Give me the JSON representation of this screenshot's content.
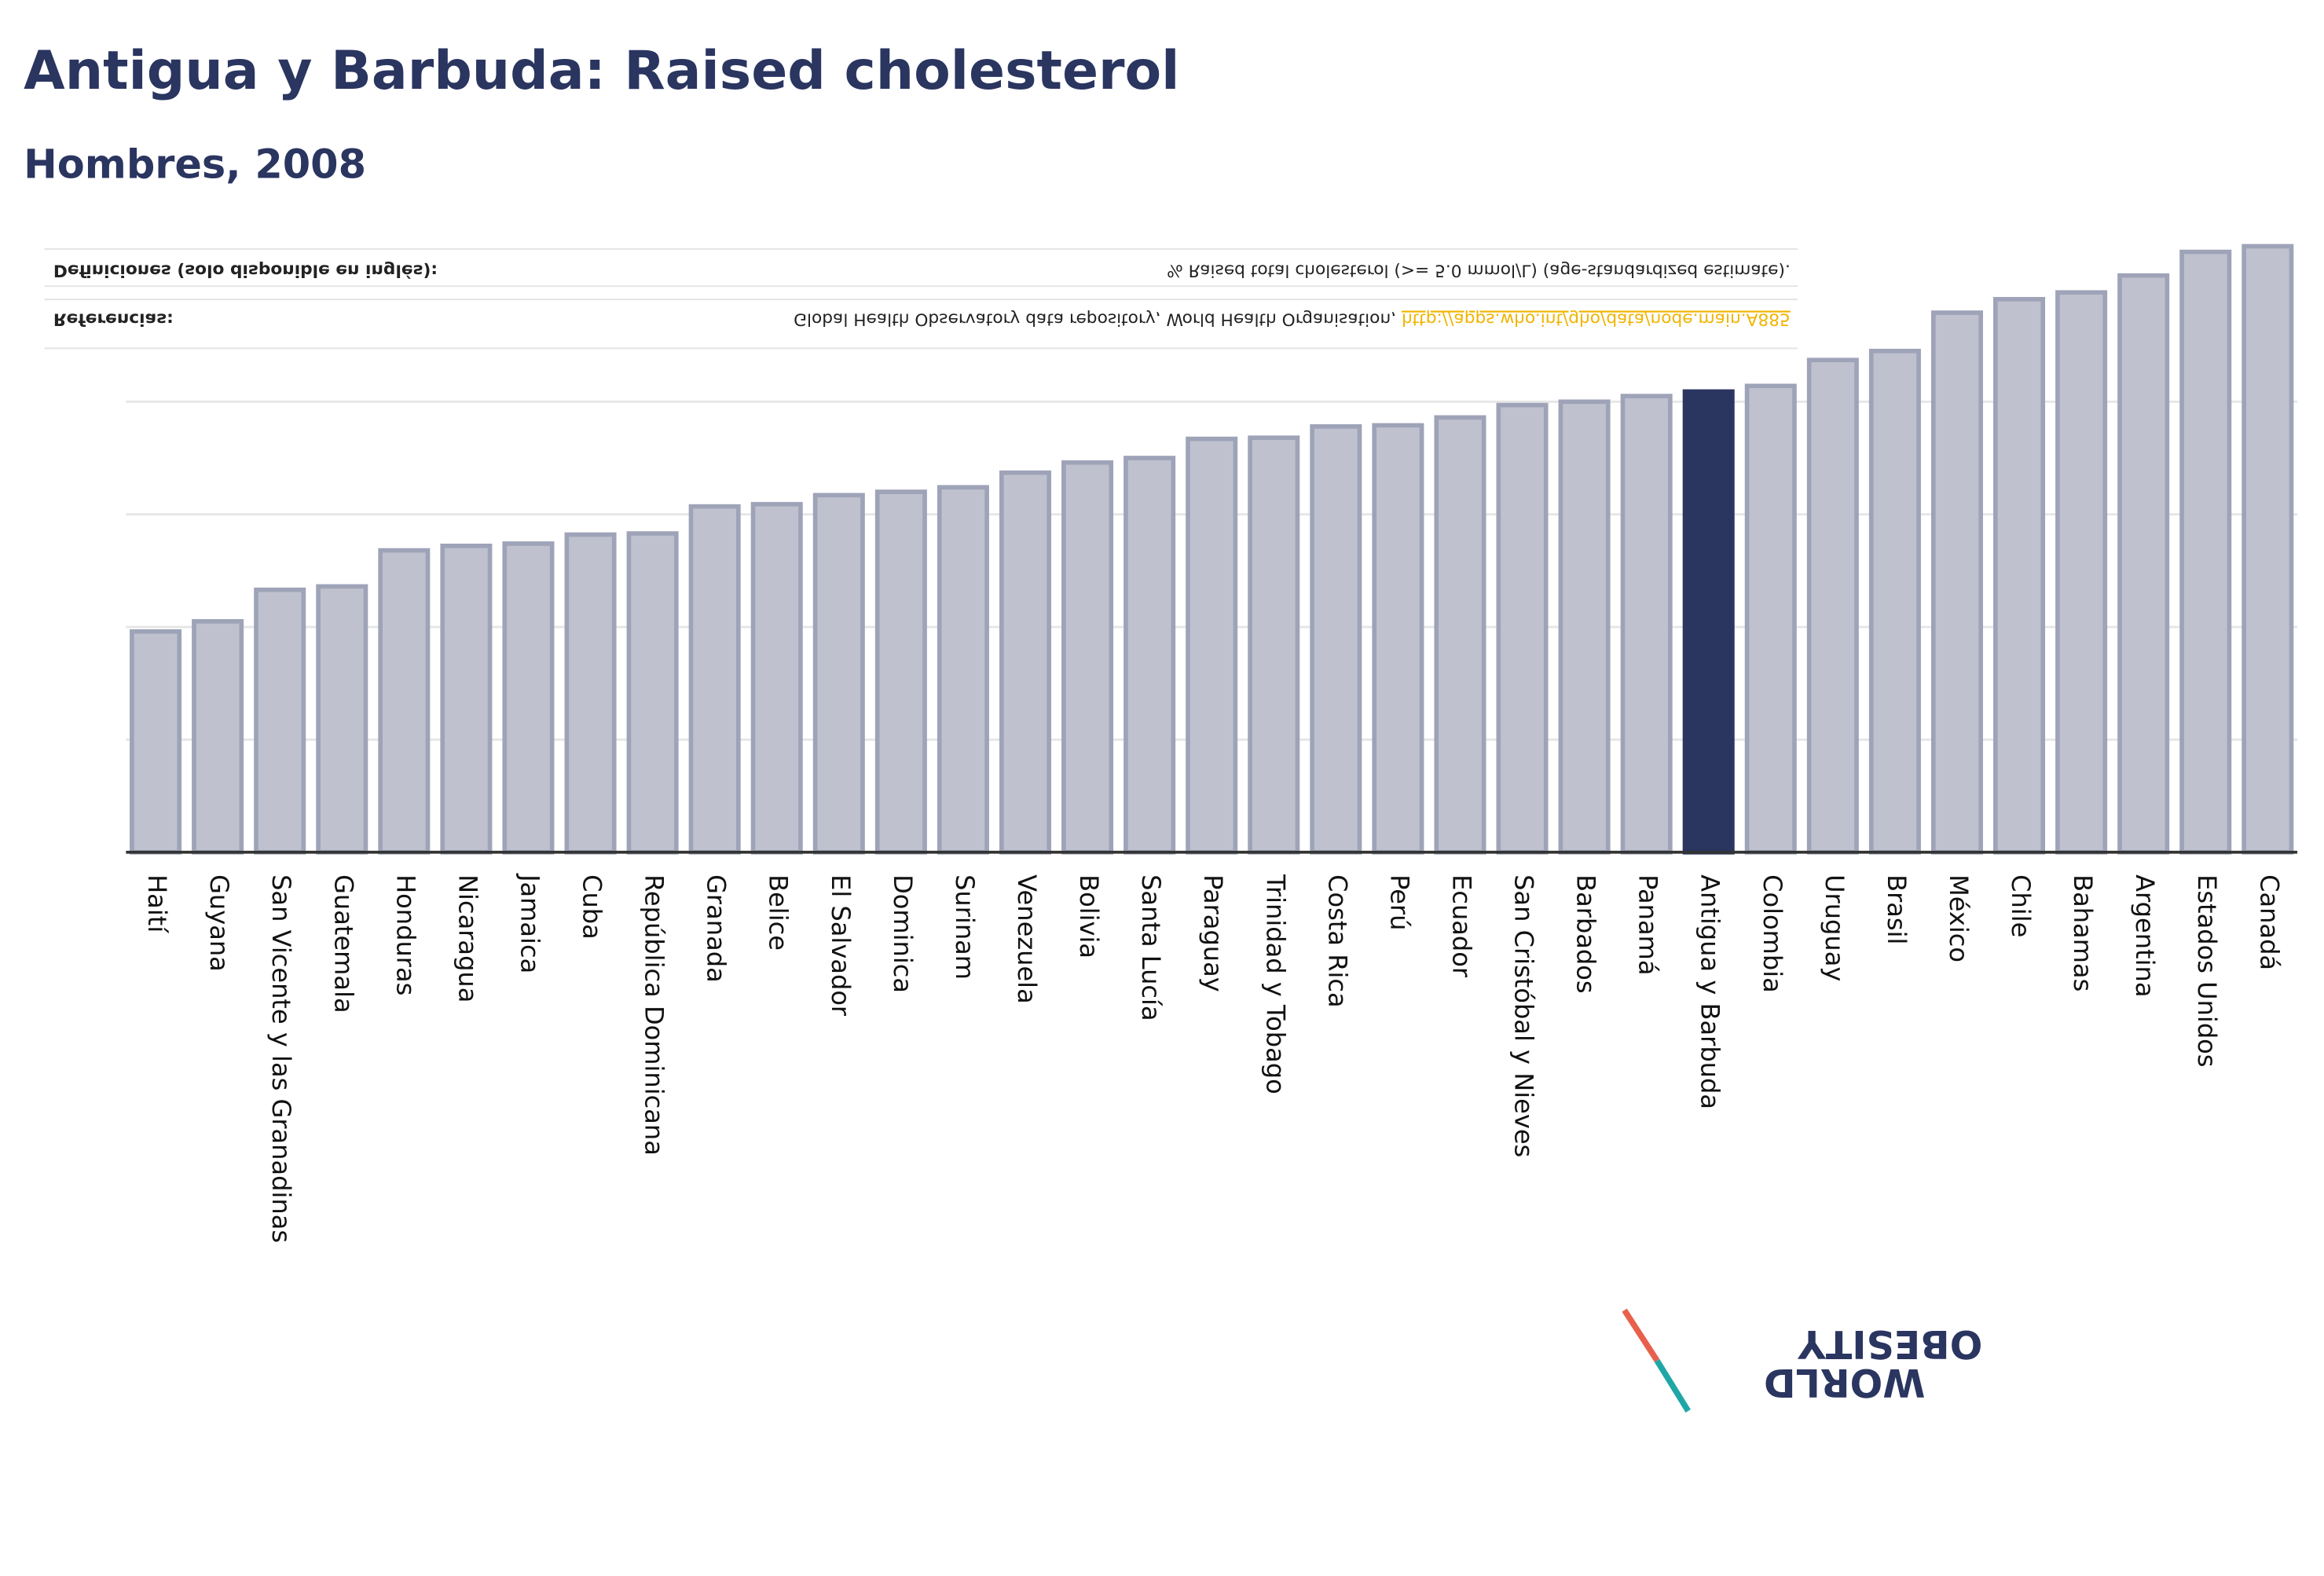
{
  "chart_data": {
    "type": "bar",
    "title": "Antigua y Barbuda: Raised cholesterol",
    "subtitle": "Hombres, 2008",
    "categories": [
      "Haití",
      "Guyana",
      "San Vicente y las Granadinas",
      "Guatemala",
      "Honduras",
      "Nicaragua",
      "Jamaica",
      "Cuba",
      "República Dominicana",
      "Granada",
      "Belice",
      "El Salvador",
      "Dominica",
      "Surinam",
      "Venezuela",
      "Bolivia",
      "Santa Lucía",
      "Paraguay",
      "Trinidad y Tobago",
      "Costa Rica",
      "Perú",
      "Ecuador",
      "San Cristóbal y Nieves",
      "Barbados",
      "Panamá",
      "Antigua y Barbuda",
      "Colombia",
      "Uruguay",
      "Brasil",
      "México",
      "Chile",
      "Bahamas",
      "Argentina",
      "Estados Unidos",
      "Canadá"
    ],
    "values": [
      19.6,
      20.5,
      23.3,
      23.6,
      26.8,
      27.2,
      27.4,
      28.2,
      28.3,
      30.7,
      30.9,
      31.7,
      32.0,
      32.4,
      33.7,
      34.6,
      35.0,
      36.7,
      36.8,
      37.8,
      37.9,
      38.6,
      39.7,
      40.0,
      40.5,
      40.9,
      41.4,
      43.7,
      44.5,
      47.9,
      49.1,
      49.7,
      51.2,
      53.3,
      53.8
    ],
    "color": "#bfc2ce",
    "edge_color": "#9ea3b8",
    "highlight": "Antigua y Barbuda",
    "highlight_color": "#2a3560",
    "ylim": [
      0,
      55
    ],
    "yticks": [
      0,
      10,
      20,
      30,
      40
    ],
    "grid": true,
    "notes": [
      {
        "label": "Definiciones (solo disponible en inglés):",
        "text": "% Raised total cholesterol (>= 5.0 mmol/L) (age-standardized estimate)."
      },
      {
        "label": "Referencias:",
        "text": "Global Health Observatory data repository, World Health Organisation, ",
        "link": "http://apps.who.int/gho/data/node.main.A885"
      }
    ],
    "logo": [
      "OBESITY",
      "WORLD"
    ]
  }
}
